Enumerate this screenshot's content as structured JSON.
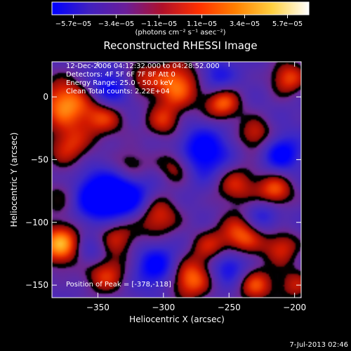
{
  "chart_data": {
    "type": "heatmap",
    "title": "Reconstructed RHESSI Image",
    "xlabel": "Heliocentric X (arcsec)",
    "ylabel": "Heliocentric Y (arcsec)",
    "xlim": [
      -385,
      -195
    ],
    "ylim": [
      -160,
      28
    ],
    "x_ticks": [
      -350,
      -300,
      -250,
      -200
    ],
    "x_tick_labels": [
      "−350",
      "−300",
      "−250",
      "−200"
    ],
    "y_ticks": [
      0,
      -50,
      -100,
      -150
    ],
    "y_tick_labels": [
      "0",
      "−50",
      "−100",
      "−150"
    ],
    "colorbar": {
      "min": -5.7e-05,
      "max": 5.7e-05,
      "tick_labels": [
        "−5.7e−05",
        "−3.4e−05",
        "−1.1e−05",
        "1.1e−05",
        "3.4e−05",
        "5.7e−05"
      ],
      "unit_label": "(photons cm⁻² s⁻¹ asec⁻²)",
      "colors": [
        "#0000ff",
        "#4020c0",
        "#6a1e9a",
        "#b0102a",
        "#ff3000",
        "#ff8000",
        "#ffd040",
        "#ffffff"
      ]
    },
    "annotations": [
      "12-Dec-2006 04:12:32.000 to 04:28:52.000",
      "Detectors: 4F 5F 6F 7F 8F  Att 0",
      "Energy Range: 25.0 - 50.0 keV",
      "Clean     Total counts: 2.22E+04"
    ],
    "peak_label": "Position of Peak = [-378,-118]",
    "peak": {
      "x": -378,
      "y": -118
    },
    "blobs": [
      {
        "x": -375,
        "y": -5,
        "v": 0.9,
        "s": 14
      },
      {
        "x": -372,
        "y": -40,
        "v": 0.6,
        "s": 12
      },
      {
        "x": -378,
        "y": -118,
        "v": 1.0,
        "s": 12
      },
      {
        "x": -375,
        "y": -80,
        "v": 0.5,
        "s": 12
      },
      {
        "x": -345,
        "y": -15,
        "v": 0.7,
        "s": 12
      },
      {
        "x": -320,
        "y": 15,
        "v": 0.5,
        "s": 10
      },
      {
        "x": -290,
        "y": 10,
        "v": 0.85,
        "s": 14
      },
      {
        "x": -300,
        "y": -20,
        "v": 0.55,
        "s": 10
      },
      {
        "x": -290,
        "y": -55,
        "v": 0.6,
        "s": 10
      },
      {
        "x": -325,
        "y": -55,
        "v": 0.5,
        "s": 10
      },
      {
        "x": -305,
        "y": -95,
        "v": 0.7,
        "s": 12
      },
      {
        "x": -335,
        "y": -110,
        "v": 0.6,
        "s": 12
      },
      {
        "x": -345,
        "y": -140,
        "v": 0.7,
        "s": 12
      },
      {
        "x": -280,
        "y": -145,
        "v": 0.85,
        "s": 12
      },
      {
        "x": -255,
        "y": -5,
        "v": 0.8,
        "s": 10
      },
      {
        "x": -230,
        "y": -30,
        "v": 0.6,
        "s": 10
      },
      {
        "x": -205,
        "y": 15,
        "v": 0.7,
        "s": 10
      },
      {
        "x": -245,
        "y": -70,
        "v": 0.6,
        "s": 12
      },
      {
        "x": -215,
        "y": -75,
        "v": 0.75,
        "s": 10
      },
      {
        "x": -240,
        "y": -110,
        "v": 0.8,
        "s": 12
      },
      {
        "x": -210,
        "y": -120,
        "v": 0.6,
        "s": 10
      },
      {
        "x": -230,
        "y": -150,
        "v": 0.7,
        "s": 10
      },
      {
        "x": -200,
        "y": -150,
        "v": 0.5,
        "s": 10
      },
      {
        "x": -265,
        "y": -120,
        "v": 0.5,
        "s": 10
      },
      {
        "x": -355,
        "y": -80,
        "v": -0.8,
        "s": 14
      },
      {
        "x": -330,
        "y": -80,
        "v": -0.9,
        "s": 14
      },
      {
        "x": -340,
        "y": 5,
        "v": -0.7,
        "s": 12
      },
      {
        "x": -260,
        "y": 15,
        "v": -0.5,
        "s": 10
      },
      {
        "x": -270,
        "y": -45,
        "v": -0.8,
        "s": 14
      },
      {
        "x": -305,
        "y": -135,
        "v": -0.7,
        "s": 12
      },
      {
        "x": -250,
        "y": -135,
        "v": -0.6,
        "s": 10
      },
      {
        "x": -210,
        "y": -45,
        "v": -0.7,
        "s": 10
      },
      {
        "x": -225,
        "y": -95,
        "v": -0.5,
        "s": 10
      },
      {
        "x": -355,
        "y": -125,
        "v": -0.5,
        "s": 10
      }
    ]
  },
  "footer": {
    "timestamp": "7-Jul-2013 02:46"
  }
}
